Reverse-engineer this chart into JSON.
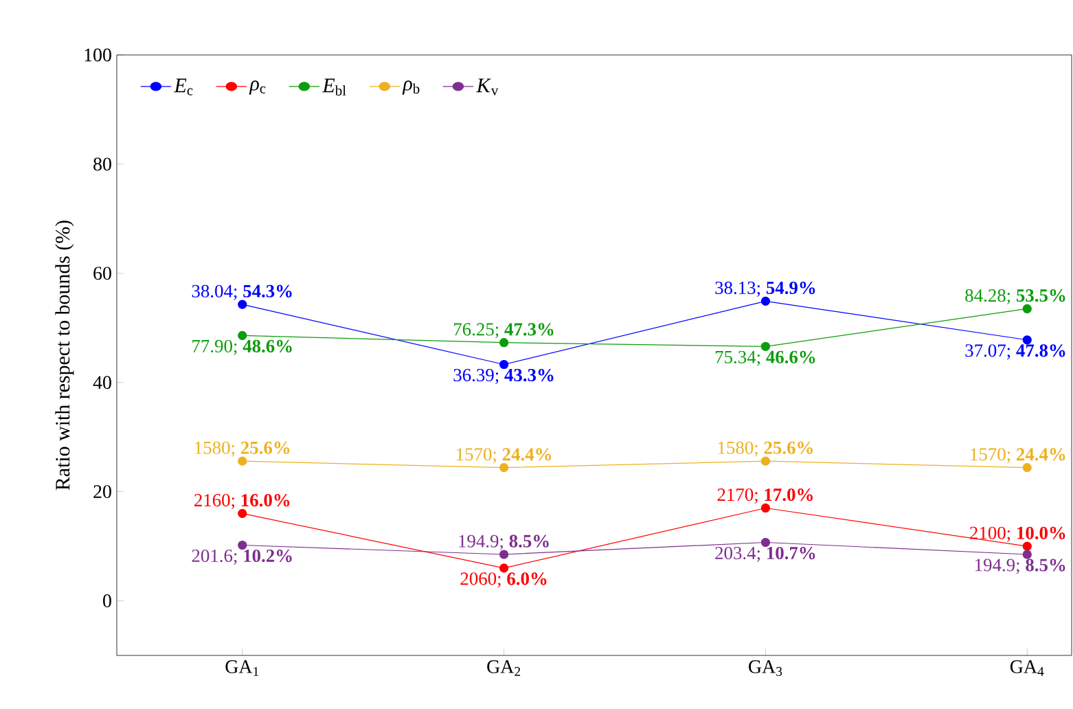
{
  "chart_data": {
    "type": "line",
    "ylabel": "Ratio with respect to bounds (%)",
    "categories": [
      "GA$_{1}$",
      "GA$_{2}$",
      "GA$_{3}$",
      "GA$_{4}$"
    ],
    "ylim": [
      -10,
      100
    ],
    "yticks": [
      0,
      20,
      40,
      60,
      80,
      100
    ],
    "legend": "top left",
    "marker": "circle",
    "line_style": "solid",
    "grid": false,
    "series": [
      {
        "name": "*E*$_{c}$",
        "color": "#0000ff",
        "values": [
          54.3,
          43.3,
          54.9,
          47.8
        ],
        "value_labels": [
          "38.04; **54.3%**",
          "36.39; **43.3%**",
          "38.13; **54.9%**",
          "37.07; **47.8%**"
        ]
      },
      {
        "name": "*ρ*$_{c}$",
        "color": "#ff0000",
        "values": [
          16.0,
          6.0,
          17.0,
          10.0
        ],
        "value_labels": [
          "2160; **16.0%**",
          "2060; **6.0%**",
          "2170; **17.0%**",
          "2100; **10.0%**"
        ]
      },
      {
        "name": "*E*$_{bl}$",
        "color": "#0c9d0c",
        "values": [
          48.6,
          47.3,
          46.6,
          53.5
        ],
        "value_labels": [
          "77.90; **48.6%**",
          "76.25; **47.3%**",
          "75.34; **46.6%**",
          "84.28; **53.5%**"
        ]
      },
      {
        "name": "*ρ*$_{b}$",
        "color": "#edb120",
        "values": [
          25.6,
          24.4,
          25.6,
          24.4
        ],
        "value_labels": [
          "1580; **25.6%**",
          "1570; **24.4%**",
          "1580; **25.6%**",
          "1570; **24.4%**"
        ]
      },
      {
        "name": "*K*$_{v}$",
        "color": "#7e2f8e",
        "values": [
          10.2,
          8.5,
          10.7,
          8.5
        ],
        "value_labels": [
          "201.6; **10.2%**",
          "194.9; **8.5%**",
          "203.4; **10.7%**",
          "194.9; **8.5%**"
        ]
      }
    ]
  }
}
